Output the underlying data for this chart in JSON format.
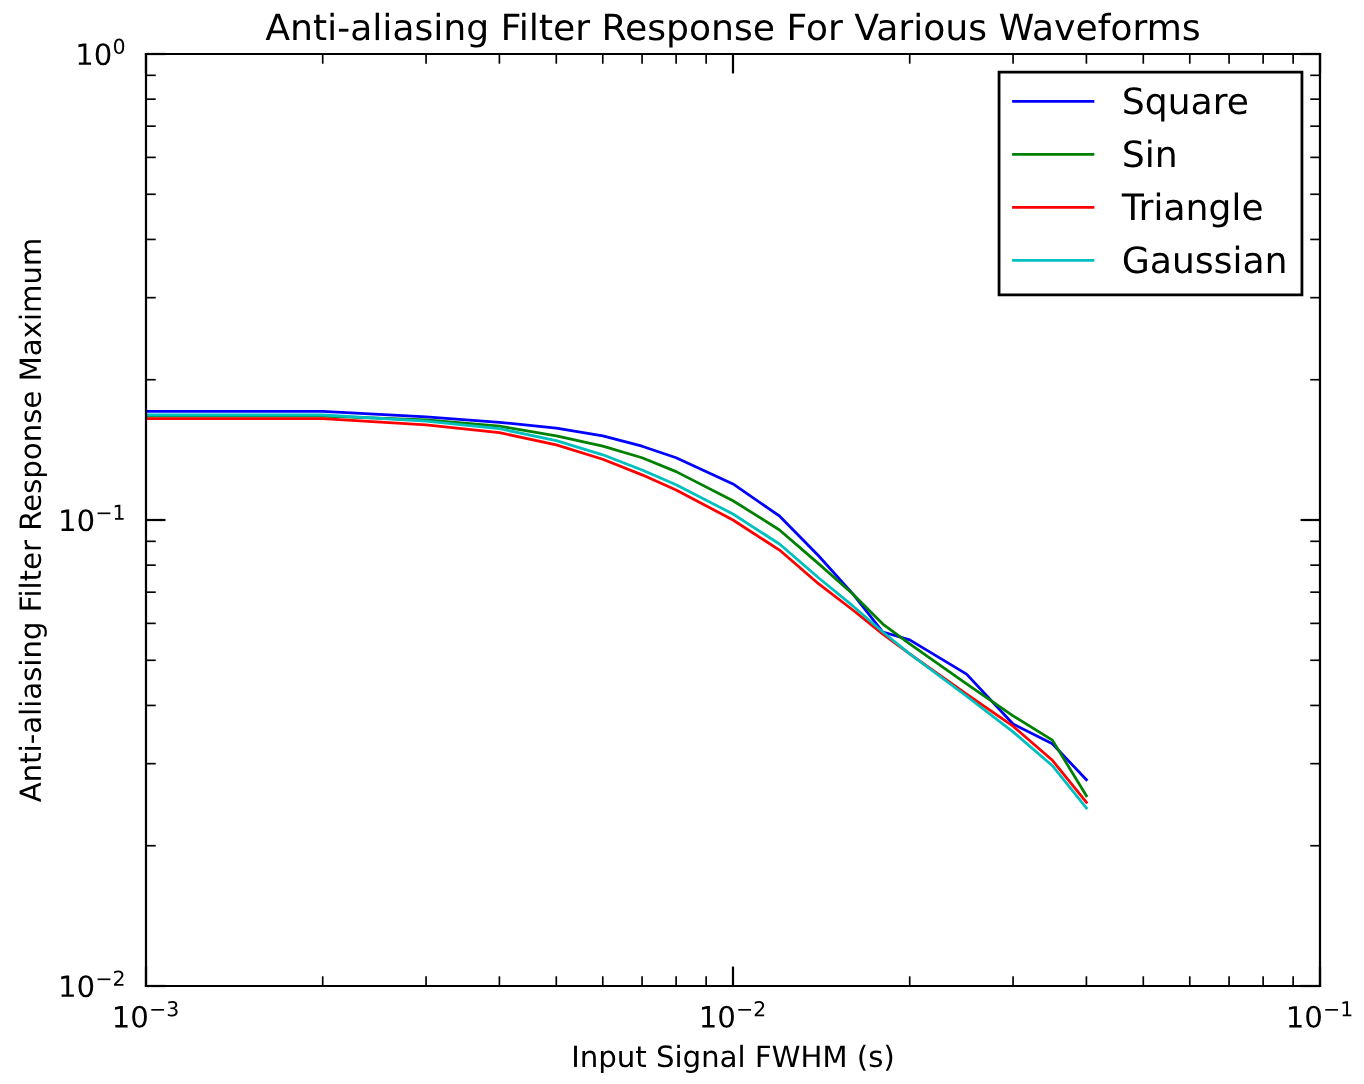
{
  "chart_data": {
    "type": "line",
    "title": "Anti-aliasing Filter Response For Various Waveforms",
    "xlabel": "Input Signal FWHM (s)",
    "ylabel": "Anti-aliasing Filter Response Maximum",
    "log": "xy",
    "legend": "top right",
    "grid": false,
    "x": [
      0.001,
      0.002,
      0.003,
      0.004,
      0.005,
      0.006,
      0.007,
      0.008,
      0.01,
      0.012,
      0.014,
      0.016,
      0.018,
      0.02,
      0.025,
      0.03,
      0.035,
      0.04
    ],
    "xlim": [
      0.001,
      0.1
    ],
    "ylim": [
      0.01,
      1
    ],
    "xticks": [
      {
        "value": 0.001,
        "label": "10$^{−3}$"
      },
      {
        "value": 0.01,
        "label": "10$^{−2}$"
      },
      {
        "value": 0.1,
        "label": "10$^{−1}$"
      }
    ],
    "yticks": [
      {
        "value": 0.01,
        "label": "10$^{−2}$"
      },
      {
        "value": 0.1,
        "label": "10$^{−1}$"
      },
      {
        "value": 1,
        "label": "10$^{0}$"
      }
    ],
    "series": [
      {
        "name": "Square",
        "color": "#0000ff",
        "values": [
          0.171,
          0.171,
          0.1665,
          0.162,
          0.1575,
          0.1515,
          0.144,
          0.136,
          0.1195,
          0.102,
          0.0837,
          0.0694,
          0.0575,
          0.0553,
          0.0467,
          0.0365,
          0.0331,
          0.0277
        ]
      },
      {
        "name": "Sin",
        "color": "#008000",
        "values": [
          0.167,
          0.167,
          0.164,
          0.159,
          0.1515,
          0.144,
          0.136,
          0.127,
          0.11,
          0.0952,
          0.0805,
          0.0694,
          0.0598,
          0.0542,
          0.0445,
          0.038,
          0.0337,
          0.0256
        ]
      },
      {
        "name": "Triangle",
        "color": "#ff0000",
        "values": [
          0.165,
          0.165,
          0.16,
          0.154,
          0.145,
          0.135,
          0.125,
          0.116,
          0.1,
          0.0862,
          0.0729,
          0.0641,
          0.0569,
          0.0516,
          0.0423,
          0.0361,
          0.0305,
          0.0248
        ]
      },
      {
        "name": "Gaussian",
        "color": "#00bfbf",
        "values": [
          0.168,
          0.168,
          0.163,
          0.157,
          0.148,
          0.138,
          0.128,
          0.119,
          0.103,
          0.0888,
          0.0751,
          0.0654,
          0.0575,
          0.0516,
          0.0419,
          0.0351,
          0.0297,
          0.0241
        ]
      }
    ]
  }
}
